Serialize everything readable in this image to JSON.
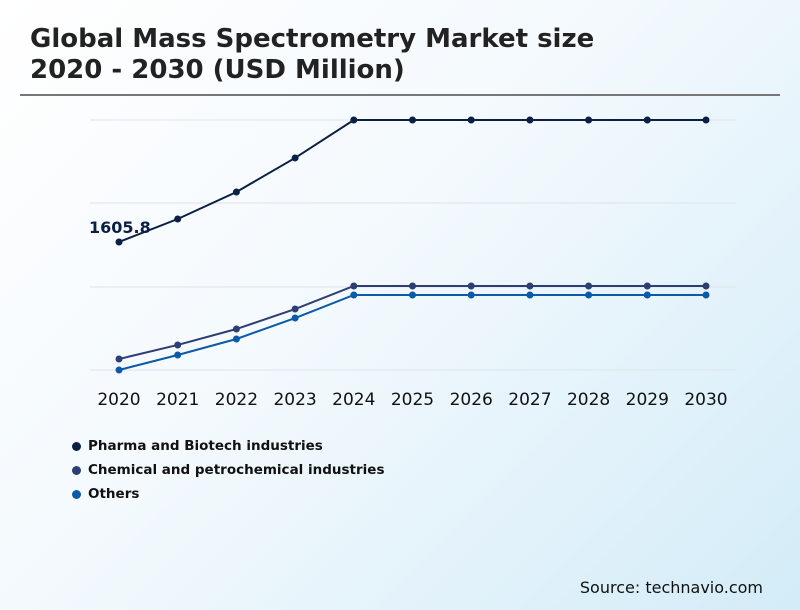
{
  "title_line1": "Global Mass Spectrometry Market size",
  "title_line2": "2020 - 2030 (USD Million)",
  "source": "Source: technavio.com",
  "chart_data": {
    "type": "line",
    "title": "Global Mass Spectrometry Market size 2020 - 2030 (USD Million)",
    "categories": [
      "2020",
      "2021",
      "2022",
      "2023",
      "2024",
      "2025",
      "2026",
      "2027",
      "2028",
      "2029",
      "2030"
    ],
    "ylim": [
      0,
      3136
    ],
    "grid": true,
    "legend_position": "bottom-left",
    "series": [
      {
        "name": "Pharma and Biotech industries",
        "color": "#0b1f45",
        "values": [
          1605.8,
          1894,
          2233,
          2660,
          3136,
          3136,
          3136,
          3136,
          3136,
          3136,
          3136
        ]
      },
      {
        "name": "Chemical and petrochemical industries",
        "color": "#2c3e72",
        "values": [
          138,
          314,
          514,
          765,
          1054,
          1054,
          1054,
          1054,
          1054,
          1054,
          1054
        ]
      },
      {
        "name": "Others",
        "color": "#0b5aa8",
        "values": [
          0,
          188,
          389,
          652,
          941,
          941,
          941,
          941,
          941,
          941,
          941
        ]
      }
    ],
    "data_labels": [
      {
        "series": 0,
        "category": "2020",
        "text": "1605.8"
      }
    ]
  }
}
